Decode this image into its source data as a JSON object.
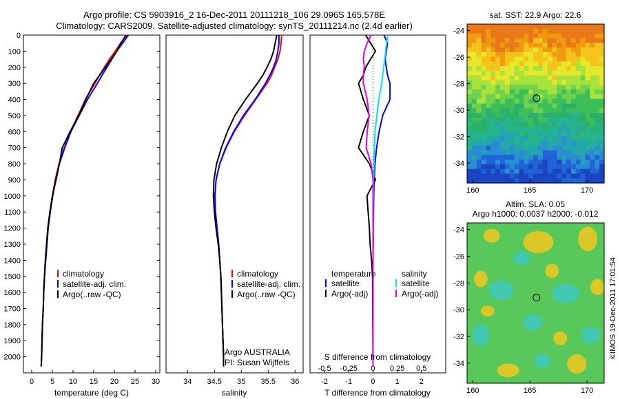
{
  "header": {
    "line1": "Argo profile: CS 5903916_2 16-Dec-2011 20111218_106 29.096S 165.578E",
    "line2": "Climatology: CARS2009. Satellite-adjusted climatology: synTS_20111214.nc (2.4d earlier)"
  },
  "colors": {
    "climatology": "#ff0000",
    "satellite": "#0000ff",
    "argo": "#000000",
    "salinity_satellite": "#00e5e5",
    "salinity_argo": "#e600e6"
  },
  "credits": {
    "agency": "Argo AUSTRALIA",
    "pi": "PI: Susan Wijffels",
    "stamp": "©IMOS 19-Dec-2011 17:01:54"
  },
  "chart_data": [
    {
      "type": "line",
      "id": "temperature",
      "xlabel": "temperature (deg C)",
      "ylabel": "",
      "xlim": [
        -2,
        31
      ],
      "ylim": [
        2100,
        0
      ],
      "xticks": [
        0,
        5,
        10,
        15,
        20,
        25,
        30
      ],
      "yticks": [
        0,
        100,
        200,
        300,
        400,
        500,
        600,
        700,
        800,
        900,
        1000,
        1100,
        1200,
        1300,
        1400,
        1500,
        1600,
        1700,
        1800,
        1900,
        2000
      ],
      "legend": [
        "climatology",
        "satellite-adj. clim.",
        "Argo(..raw -QC)"
      ],
      "legend_position": "lower-center",
      "depth": [
        0,
        50,
        100,
        150,
        200,
        250,
        300,
        400,
        500,
        600,
        700,
        800,
        900,
        1000,
        1100,
        1200,
        1300,
        1400,
        1500,
        1600,
        1700,
        1800,
        1900,
        2000,
        2060
      ],
      "series": [
        {
          "name": "climatology",
          "values": [
            23.0,
            21.5,
            20.2,
            18.8,
            17.6,
            16.4,
            15.3,
            13.0,
            11.2,
            9.4,
            7.9,
            6.6,
            5.7,
            5.0,
            4.4,
            3.9,
            3.6,
            3.3,
            3.1,
            2.9,
            2.8,
            2.6,
            2.5,
            2.4,
            2.3
          ]
        },
        {
          "name": "satellite-adj. clim.",
          "values": [
            23.4,
            22.0,
            20.6,
            19.4,
            18.2,
            17.0,
            15.9,
            13.5,
            11.5,
            9.5,
            8.0,
            6.7,
            5.8,
            5.1,
            4.5,
            4.0,
            3.7,
            3.4,
            3.1,
            2.9,
            2.8,
            2.6,
            2.5,
            2.4,
            2.3
          ]
        },
        {
          "name": "Argo(..raw -QC)",
          "values": [
            22.8,
            21.6,
            20.6,
            19.2,
            17.8,
            16.4,
            15.0,
            13.1,
            11.4,
            9.3,
            7.4,
            6.7,
            5.9,
            5.0,
            4.4,
            3.9,
            3.6,
            3.3,
            3.1,
            2.9,
            2.8,
            2.6,
            2.5,
            2.4,
            2.3
          ]
        }
      ]
    },
    {
      "type": "line",
      "id": "salinity",
      "xlabel": "salinity",
      "xlim": [
        33.6,
        36.15
      ],
      "ylim": [
        2100,
        0
      ],
      "xticks": [
        34,
        34.5,
        35,
        35.5,
        36
      ],
      "xticklabels": [
        "34",
        "34.5",
        "35",
        "35.5",
        "36"
      ],
      "legend": [
        "climatology",
        "satellite-adj. clim.",
        "Argo(..raw -QC)"
      ],
      "legend_position": "lower-center",
      "depth": [
        0,
        50,
        100,
        150,
        200,
        250,
        300,
        400,
        500,
        600,
        700,
        800,
        900,
        1000,
        1100,
        1200,
        1300,
        1400,
        1500,
        1600,
        1700,
        1800,
        1900,
        2000,
        2060
      ],
      "series": [
        {
          "name": "climatology",
          "values": [
            35.75,
            35.74,
            35.72,
            35.68,
            35.62,
            35.56,
            35.48,
            35.27,
            35.06,
            34.87,
            34.72,
            34.6,
            34.53,
            34.51,
            34.52,
            34.55,
            34.58,
            34.6,
            34.62,
            34.63,
            34.64,
            34.65,
            34.66,
            34.67,
            34.67
          ]
        },
        {
          "name": "satellite-adj. clim.",
          "values": [
            35.7,
            35.7,
            35.68,
            35.65,
            35.6,
            35.53,
            35.45,
            35.26,
            35.04,
            34.86,
            34.71,
            34.6,
            34.53,
            34.51,
            34.52,
            34.55,
            34.58,
            34.6,
            34.62,
            34.63,
            34.64,
            34.65,
            34.66,
            34.67,
            34.67
          ]
        },
        {
          "name": "Argo(..raw -QC)",
          "values": [
            35.66,
            35.63,
            35.6,
            35.55,
            35.48,
            35.4,
            35.3,
            35.08,
            34.88,
            34.74,
            34.63,
            34.54,
            34.49,
            34.48,
            34.5,
            34.53,
            34.57,
            34.6,
            34.62,
            34.63,
            34.64,
            34.65,
            34.66,
            34.67,
            34.67
          ]
        }
      ]
    },
    {
      "type": "line",
      "id": "difference",
      "xlabel": "T difference from climatology",
      "top_axis_label": "S difference from climatology",
      "xlim": [
        -2.6,
        3.0
      ],
      "ylim": [
        2100,
        0
      ],
      "xticks": [
        -2,
        -1,
        0,
        1,
        2
      ],
      "top_ticks": [
        -0.5,
        -0.25,
        0,
        0.25,
        0.5
      ],
      "top_ticklabels": [
        "-0.5",
        "-0.25",
        "0",
        "0.25",
        "0.5"
      ],
      "legend_temperature_title": "temperature",
      "legend_salinity_title": "salinity",
      "legend": [
        "satellite",
        "Argo(-adj)",
        "satellite",
        "Argo(-adj)"
      ],
      "legend_position": "lower-center",
      "depth": [
        0,
        50,
        100,
        150,
        200,
        250,
        300,
        400,
        500,
        600,
        700,
        800,
        900,
        1000,
        1100,
        1200,
        1300,
        1400,
        1500,
        2060
      ],
      "series": [
        {
          "name": "temperature satellite",
          "quantity": "T",
          "values": [
            0.45,
            0.6,
            0.55,
            0.5,
            0.55,
            0.6,
            0.7,
            0.7,
            0.4,
            0.25,
            0.15,
            0.08,
            0.05,
            0.03,
            0.02,
            0.01,
            0.01,
            0.0,
            0.0,
            0.0
          ]
        },
        {
          "name": "temperature Argo(-adj)",
          "quantity": "T",
          "values": [
            -0.3,
            -0.1,
            0.1,
            -0.1,
            -0.3,
            -0.4,
            -0.6,
            -0.4,
            -0.15,
            -0.4,
            -0.6,
            -0.15,
            0.1,
            -0.25,
            -0.2,
            -0.15,
            -0.12,
            -0.06,
            -0.02,
            0.0
          ]
        },
        {
          "name": "salinity satellite",
          "quantity": "S",
          "values": [
            0.15,
            0.14,
            0.13,
            0.12,
            0.11,
            0.1,
            0.09,
            0.06,
            0.04,
            0.02,
            0.015,
            0.01,
            0.005,
            0.003,
            0.002,
            0.001,
            0.0,
            0.0,
            0.0,
            0.0
          ]
        },
        {
          "name": "salinity Argo(-adj)",
          "quantity": "S",
          "values": [
            -0.02,
            -0.06,
            -0.09,
            -0.1,
            -0.09,
            -0.1,
            -0.1,
            -0.06,
            -0.04,
            -0.06,
            -0.07,
            -0.02,
            0.0,
            0.0,
            0.0,
            0.0,
            0.0,
            0.0,
            0.0,
            0.0
          ]
        }
      ]
    },
    {
      "type": "heatmap",
      "id": "sst-map",
      "title": "sat. SST: 22.9  Argo: 22.6",
      "xlim": [
        159.5,
        171.5
      ],
      "ylim": [
        -35.5,
        -23.5
      ],
      "xticks": [
        160,
        165,
        170
      ],
      "yticks": [
        -24,
        -26,
        -28,
        -30,
        -32,
        -34
      ],
      "argo_position": {
        "lon": 165.578,
        "lat": -29.096
      },
      "row_colors": [
        "#e87818",
        "#f09a10",
        "#f5c41a",
        "#e6e82c",
        "#a8e23c",
        "#6fd24e",
        "#3cbe58",
        "#2ab06a",
        "#26b48f",
        "#24a6ad",
        "#2a8ed4",
        "#1e64d6",
        "#1a44c0"
      ]
    },
    {
      "type": "heatmap",
      "id": "sla-map",
      "title": "Altim. SLA: 0.05",
      "subtitle": "Argo h1000: 0.0037  h2000: -0.012",
      "xlim": [
        159.5,
        171.5
      ],
      "ylim": [
        -35.5,
        -23.5
      ],
      "xticks": [
        160,
        165,
        170
      ],
      "yticks": [
        -24,
        -26,
        -28,
        -30,
        -32,
        -34
      ],
      "argo_position": {
        "lon": 165.578,
        "lat": -29.096
      },
      "base_color": "#58c85a",
      "warm_color": "#f0c820",
      "cool_color": "#3cc8c0"
    }
  ]
}
